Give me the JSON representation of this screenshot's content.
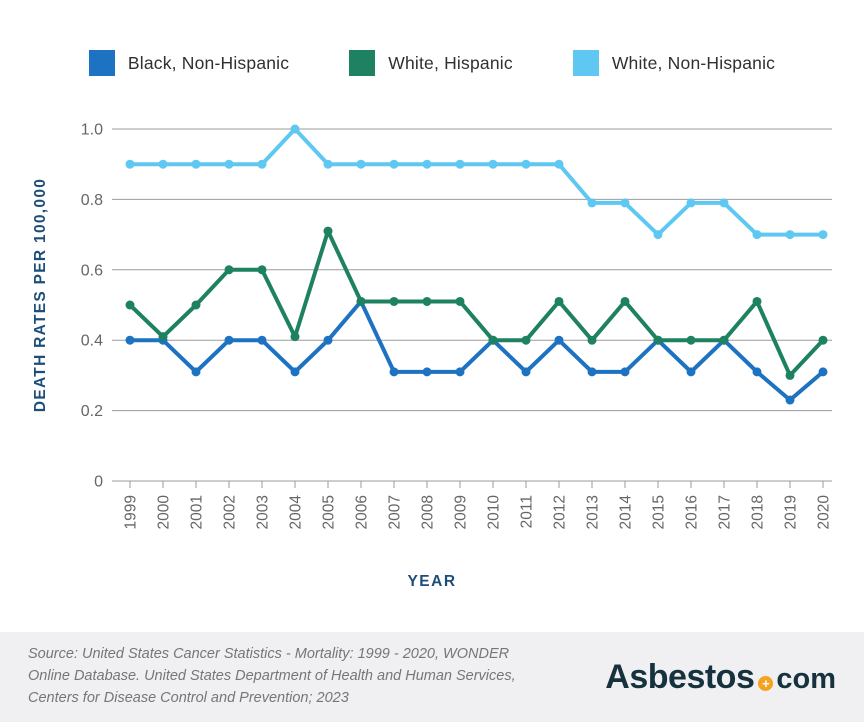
{
  "legend": {
    "items": [
      {
        "label": "Black, Non-Hispanic",
        "color": "#1e72c2"
      },
      {
        "label": "White, Hispanic",
        "color": "#1e8161"
      },
      {
        "label": "White, Non-Hispanic",
        "color": "#5fc8f2"
      }
    ]
  },
  "chart_data": {
    "type": "line",
    "title": "",
    "xlabel": "YEAR",
    "ylabel": "DEATH RATES PER 100,000",
    "x": [
      1999,
      2000,
      2001,
      2002,
      2003,
      2004,
      2005,
      2006,
      2007,
      2008,
      2009,
      2010,
      2011,
      2012,
      2013,
      2014,
      2015,
      2016,
      2017,
      2018,
      2019,
      2020
    ],
    "series": [
      {
        "name": "Black, Non-Hispanic",
        "color": "#1e72c2",
        "values": [
          0.4,
          0.4,
          0.31,
          0.4,
          0.4,
          0.31,
          0.4,
          0.51,
          0.31,
          0.31,
          0.31,
          0.4,
          0.31,
          0.4,
          0.31,
          0.31,
          0.4,
          0.31,
          0.4,
          0.31,
          0.23,
          0.31
        ]
      },
      {
        "name": "White, Hispanic",
        "color": "#1e8161",
        "values": [
          0.5,
          0.41,
          0.5,
          0.6,
          0.6,
          0.41,
          0.71,
          0.51,
          0.51,
          0.51,
          0.51,
          0.4,
          0.4,
          0.51,
          0.4,
          0.51,
          0.4,
          0.4,
          0.4,
          0.51,
          0.3,
          0.4
        ]
      },
      {
        "name": "White, Non-Hispanic",
        "color": "#5fc8f2",
        "values": [
          0.9,
          0.9,
          0.9,
          0.9,
          0.9,
          1.0,
          0.9,
          0.9,
          0.9,
          0.9,
          0.9,
          0.9,
          0.9,
          0.9,
          0.79,
          0.79,
          0.7,
          0.79,
          0.79,
          0.7,
          0.7,
          0.7
        ]
      }
    ],
    "yticks": [
      {
        "value": 0,
        "label": "0"
      },
      {
        "value": 0.2,
        "label": "0.2"
      },
      {
        "value": 0.4,
        "label": "0.4"
      },
      {
        "value": 0.6,
        "label": "0.6"
      },
      {
        "value": 0.8,
        "label": "0.8"
      },
      {
        "value": 1.0,
        "label": "1.0"
      }
    ],
    "ylim": [
      0,
      1.05
    ],
    "grid": true,
    "legend_position": "top",
    "colors": {
      "gridline": "#9b9b9b",
      "tick_label": "#666666",
      "axis_title": "#1d4e79"
    }
  },
  "footer": {
    "source_lines": [
      "Source: United States Cancer Statistics - Mortality: 1999 - 2020, WONDER",
      "Online Database. United States Department of Health and Human Services,",
      "Centers for Disease Control and Prevention; 2023"
    ],
    "logo": {
      "main": "Asbestos",
      "plus": "+",
      "suffix": "com"
    }
  }
}
